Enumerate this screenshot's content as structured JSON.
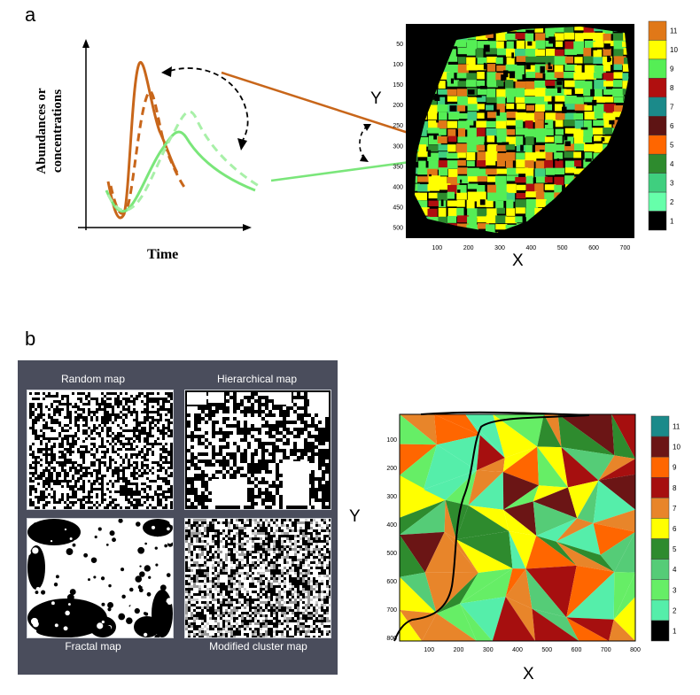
{
  "panel_a": {
    "label": "a",
    "ylabel_line1": "Abundances or",
    "ylabel_line2": "concentrations",
    "xlabel": "Time",
    "map_y_label": "Y",
    "map_x_label": "X",
    "map_x_ticks": [
      "100",
      "200",
      "300",
      "400",
      "500",
      "600",
      "700"
    ],
    "map_y_ticks": [
      "50",
      "100",
      "150",
      "200",
      "250",
      "300",
      "350",
      "400",
      "450",
      "500"
    ],
    "colorbar_ticks": [
      "11",
      "10",
      "9",
      "8",
      "7",
      "6",
      "5",
      "4",
      "3",
      "2",
      "1"
    ],
    "colorbar_colors": [
      "#e07818",
      "#ffff00",
      "#55ee55",
      "#b00f0f",
      "#1b8a8a",
      "#5e1414",
      "#ff6600",
      "#2e8b2e",
      "#3fcf7f",
      "#66ffaa",
      "#000000"
    ],
    "curve_colors": {
      "orange": "#c8661a",
      "green": "#7ae67a"
    }
  },
  "panel_b": {
    "label": "b",
    "maps": [
      {
        "title": "Random map"
      },
      {
        "title": "Hierarchical map"
      },
      {
        "title": "Fractal map"
      },
      {
        "title": "Modified cluster map"
      }
    ],
    "map_y_label": "Y",
    "map_x_label": "X",
    "map_x_ticks": [
      "100",
      "200",
      "300",
      "400",
      "500",
      "600",
      "700",
      "800"
    ],
    "map_y_ticks": [
      "100",
      "200",
      "300",
      "400",
      "500",
      "600",
      "700",
      "800"
    ],
    "colorbar_ticks": [
      "11",
      "10",
      "9",
      "8",
      "7",
      "6",
      "5",
      "4",
      "3",
      "2",
      "1"
    ],
    "colorbar_colors": [
      "#1b8a8a",
      "#6b1515",
      "#ff6600",
      "#a60f0f",
      "#e8852a",
      "#ffff00",
      "#2e8b2e",
      "#55cc77",
      "#66ee66",
      "#55eeaa",
      "#000000"
    ]
  }
}
